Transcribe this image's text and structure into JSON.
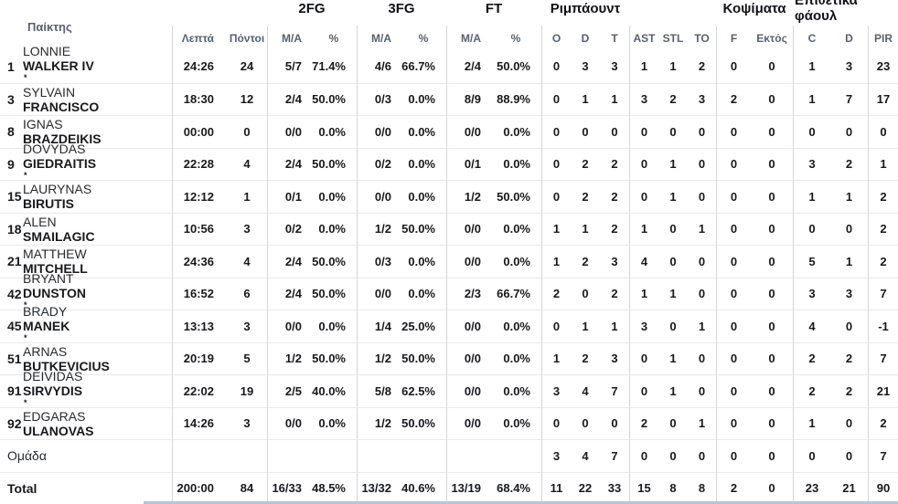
{
  "table": {
    "player_col_header": "Παίκτης",
    "groups": [
      {
        "id": "2fg",
        "label": "2FG"
      },
      {
        "id": "3fg",
        "label": "3FG"
      },
      {
        "id": "ft",
        "label": "FT"
      },
      {
        "id": "rebounds",
        "label": "Ριμπάουντ"
      },
      {
        "id": "blocks",
        "label": "Κοψίματα"
      },
      {
        "id": "offensive-fouls",
        "label": "Επιθετικά φάουλ"
      }
    ],
    "sub_headers": [
      "Λεπτά",
      "Πόντοι",
      "M/A",
      "%",
      "M/A",
      "%",
      "M/A",
      "%",
      "O",
      "D",
      "T",
      "AST",
      "STL",
      "TO",
      "F",
      "Εκτός",
      "C",
      "D",
      "PIR"
    ],
    "rows": [
      {
        "number": "1",
        "first": "LONNIE",
        "last": "WALKER IV",
        "starter": true,
        "min": "24:26",
        "pts": "24",
        "fg2_ma": "5/7",
        "fg2_pct": "71.4%",
        "fg3_ma": "4/6",
        "fg3_pct": "66.7%",
        "ft_ma": "2/4",
        "ft_pct": "50.0%",
        "reb_o": "0",
        "reb_d": "3",
        "reb_t": "3",
        "ast": "1",
        "stl": "1",
        "to": "2",
        "blk_f": "0",
        "blk_a": "0",
        "foul_c": "1",
        "foul_d": "3",
        "pir": "23"
      },
      {
        "number": "3",
        "first": "SYLVAIN",
        "last": "FRANCISCO",
        "starter": false,
        "min": "18:30",
        "pts": "12",
        "fg2_ma": "2/4",
        "fg2_pct": "50.0%",
        "fg3_ma": "0/3",
        "fg3_pct": "0.0%",
        "ft_ma": "8/9",
        "ft_pct": "88.9%",
        "reb_o": "0",
        "reb_d": "1",
        "reb_t": "1",
        "ast": "3",
        "stl": "2",
        "to": "3",
        "blk_f": "2",
        "blk_a": "0",
        "foul_c": "1",
        "foul_d": "7",
        "pir": "17"
      },
      {
        "number": "8",
        "first": "IGNAS",
        "last": "BRAZDEIKIS",
        "starter": false,
        "min": "00:00",
        "pts": "0",
        "fg2_ma": "0/0",
        "fg2_pct": "0.0%",
        "fg3_ma": "0/0",
        "fg3_pct": "0.0%",
        "ft_ma": "0/0",
        "ft_pct": "0.0%",
        "reb_o": "0",
        "reb_d": "0",
        "reb_t": "0",
        "ast": "0",
        "stl": "0",
        "to": "0",
        "blk_f": "0",
        "blk_a": "0",
        "foul_c": "0",
        "foul_d": "0",
        "pir": "0"
      },
      {
        "number": "9",
        "first": "DOVYDAS",
        "last": "GIEDRAITIS",
        "starter": true,
        "min": "22:28",
        "pts": "4",
        "fg2_ma": "2/4",
        "fg2_pct": "50.0%",
        "fg3_ma": "0/2",
        "fg3_pct": "0.0%",
        "ft_ma": "0/1",
        "ft_pct": "0.0%",
        "reb_o": "0",
        "reb_d": "2",
        "reb_t": "2",
        "ast": "0",
        "stl": "1",
        "to": "0",
        "blk_f": "0",
        "blk_a": "0",
        "foul_c": "3",
        "foul_d": "2",
        "pir": "1"
      },
      {
        "number": "15",
        "first": "LAURYNAS",
        "last": "BIRUTIS",
        "starter": false,
        "min": "12:12",
        "pts": "1",
        "fg2_ma": "0/1",
        "fg2_pct": "0.0%",
        "fg3_ma": "0/0",
        "fg3_pct": "0.0%",
        "ft_ma": "1/2",
        "ft_pct": "50.0%",
        "reb_o": "0",
        "reb_d": "2",
        "reb_t": "2",
        "ast": "0",
        "stl": "1",
        "to": "0",
        "blk_f": "0",
        "blk_a": "0",
        "foul_c": "1",
        "foul_d": "1",
        "pir": "2"
      },
      {
        "number": "18",
        "first": "ALEN",
        "last": "SMAILAGIC",
        "starter": false,
        "min": "10:56",
        "pts": "3",
        "fg2_ma": "0/2",
        "fg2_pct": "0.0%",
        "fg3_ma": "1/2",
        "fg3_pct": "50.0%",
        "ft_ma": "0/0",
        "ft_pct": "0.0%",
        "reb_o": "1",
        "reb_d": "1",
        "reb_t": "2",
        "ast": "1",
        "stl": "0",
        "to": "1",
        "blk_f": "0",
        "blk_a": "0",
        "foul_c": "0",
        "foul_d": "0",
        "pir": "2"
      },
      {
        "number": "21",
        "first": "MATTHEW",
        "last": "MITCHELL",
        "starter": false,
        "min": "24:36",
        "pts": "4",
        "fg2_ma": "2/4",
        "fg2_pct": "50.0%",
        "fg3_ma": "0/3",
        "fg3_pct": "0.0%",
        "ft_ma": "0/0",
        "ft_pct": "0.0%",
        "reb_o": "1",
        "reb_d": "2",
        "reb_t": "3",
        "ast": "4",
        "stl": "0",
        "to": "0",
        "blk_f": "0",
        "blk_a": "0",
        "foul_c": "5",
        "foul_d": "1",
        "pir": "2"
      },
      {
        "number": "42",
        "first": "BRYANT",
        "last": "DUNSTON",
        "starter": true,
        "min": "16:52",
        "pts": "6",
        "fg2_ma": "2/4",
        "fg2_pct": "50.0%",
        "fg3_ma": "0/0",
        "fg3_pct": "0.0%",
        "ft_ma": "2/3",
        "ft_pct": "66.7%",
        "reb_o": "2",
        "reb_d": "0",
        "reb_t": "2",
        "ast": "1",
        "stl": "1",
        "to": "0",
        "blk_f": "0",
        "blk_a": "0",
        "foul_c": "3",
        "foul_d": "3",
        "pir": "7"
      },
      {
        "number": "45",
        "first": "BRADY",
        "last": "MANEK",
        "starter": true,
        "min": "13:13",
        "pts": "3",
        "fg2_ma": "0/0",
        "fg2_pct": "0.0%",
        "fg3_ma": "1/4",
        "fg3_pct": "25.0%",
        "ft_ma": "0/0",
        "ft_pct": "0.0%",
        "reb_o": "0",
        "reb_d": "1",
        "reb_t": "1",
        "ast": "3",
        "stl": "0",
        "to": "1",
        "blk_f": "0",
        "blk_a": "0",
        "foul_c": "4",
        "foul_d": "0",
        "pir": "-1"
      },
      {
        "number": "51",
        "first": "ARNAS",
        "last": "BUTKEVICIUS",
        "starter": false,
        "min": "20:19",
        "pts": "5",
        "fg2_ma": "1/2",
        "fg2_pct": "50.0%",
        "fg3_ma": "1/2",
        "fg3_pct": "50.0%",
        "ft_ma": "0/0",
        "ft_pct": "0.0%",
        "reb_o": "1",
        "reb_d": "2",
        "reb_t": "3",
        "ast": "0",
        "stl": "1",
        "to": "0",
        "blk_f": "0",
        "blk_a": "0",
        "foul_c": "2",
        "foul_d": "2",
        "pir": "7"
      },
      {
        "number": "91",
        "first": "DEIVIDAS",
        "last": "SIRVYDIS",
        "starter": true,
        "min": "22:02",
        "pts": "19",
        "fg2_ma": "2/5",
        "fg2_pct": "40.0%",
        "fg3_ma": "5/8",
        "fg3_pct": "62.5%",
        "ft_ma": "0/0",
        "ft_pct": "0.0%",
        "reb_o": "3",
        "reb_d": "4",
        "reb_t": "7",
        "ast": "0",
        "stl": "1",
        "to": "0",
        "blk_f": "0",
        "blk_a": "0",
        "foul_c": "2",
        "foul_d": "2",
        "pir": "21"
      },
      {
        "number": "92",
        "first": "EDGARAS",
        "last": "ULANOVAS",
        "starter": false,
        "min": "14:26",
        "pts": "3",
        "fg2_ma": "0/0",
        "fg2_pct": "0.0%",
        "fg3_ma": "1/2",
        "fg3_pct": "50.0%",
        "ft_ma": "0/0",
        "ft_pct": "0.0%",
        "reb_o": "0",
        "reb_d": "0",
        "reb_t": "0",
        "ast": "2",
        "stl": "0",
        "to": "1",
        "blk_f": "0",
        "blk_a": "0",
        "foul_c": "1",
        "foul_d": "0",
        "pir": "2"
      },
      {
        "label": "Ομάδα",
        "is_total": false,
        "min": "",
        "pts": "",
        "fg2_ma": "",
        "fg2_pct": "",
        "fg3_ma": "",
        "fg3_pct": "",
        "ft_ma": "",
        "ft_pct": "",
        "reb_o": "3",
        "reb_d": "4",
        "reb_t": "7",
        "ast": "0",
        "stl": "0",
        "to": "0",
        "blk_f": "0",
        "blk_a": "0",
        "foul_c": "0",
        "foul_d": "0",
        "pir": "7"
      },
      {
        "label": "Total",
        "is_total": true,
        "min": "200:00",
        "pts": "84",
        "fg2_ma": "16/33",
        "fg2_pct": "48.5%",
        "fg3_ma": "13/32",
        "fg3_pct": "40.6%",
        "ft_ma": "13/19",
        "ft_pct": "68.4%",
        "reb_o": "11",
        "reb_d": "22",
        "reb_t": "33",
        "ast": "15",
        "stl": "8",
        "to": "8",
        "blk_f": "2",
        "blk_a": "0",
        "foul_c": "23",
        "foul_d": "21",
        "pir": "90"
      }
    ],
    "starter_mark": "*"
  },
  "colors": {
    "background": "#ffffff",
    "data_text": "#17191d",
    "header_text": "#57616f",
    "column_line": "#d4d6d9",
    "row_line": "#e8e9eb",
    "bottom_accent": "#b7c4d8"
  }
}
